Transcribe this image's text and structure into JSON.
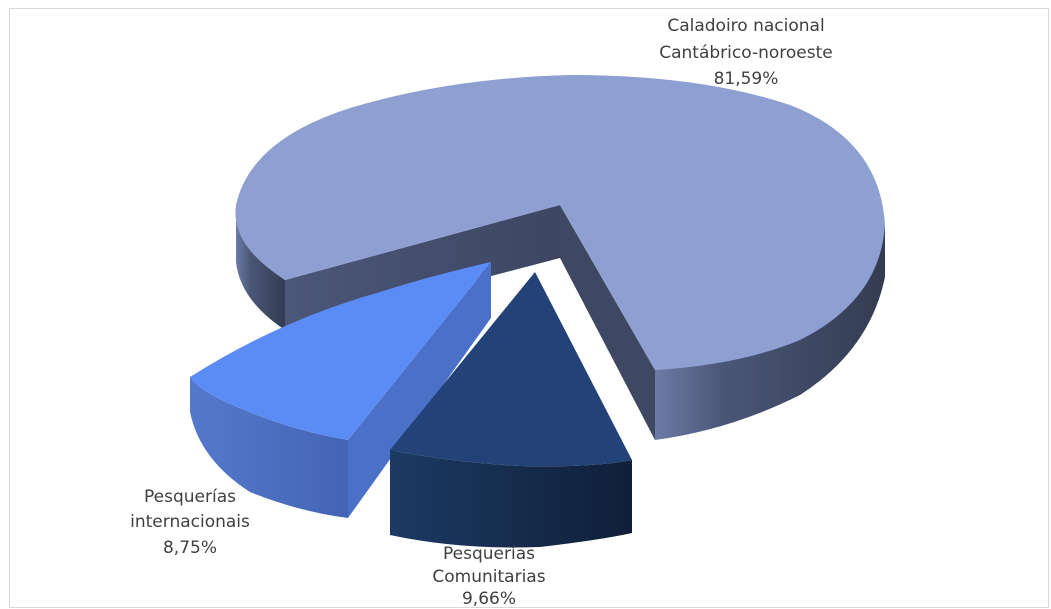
{
  "chart_data": {
    "type": "pie",
    "title": "",
    "style": "3d-exploded",
    "slices": [
      {
        "label_lines": [
          "Caladoiro nacional",
          "Cantábrico-noroeste"
        ],
        "value": 81.59,
        "value_text": "81,59%",
        "color_top": "#8ea0d2",
        "color_side": "#3a4560"
      },
      {
        "label_lines": [
          "Pesquerías",
          "internacionais"
        ],
        "value": 8.75,
        "value_text": "8,75%",
        "color_top": "#5b8cf5",
        "color_side": "#4a70c8"
      },
      {
        "label_lines": [
          "Pesquerías",
          "Comunitarias"
        ],
        "value": 9.66,
        "value_text": "9,66%",
        "color_top": "#234277",
        "color_side": "#162848"
      }
    ]
  }
}
